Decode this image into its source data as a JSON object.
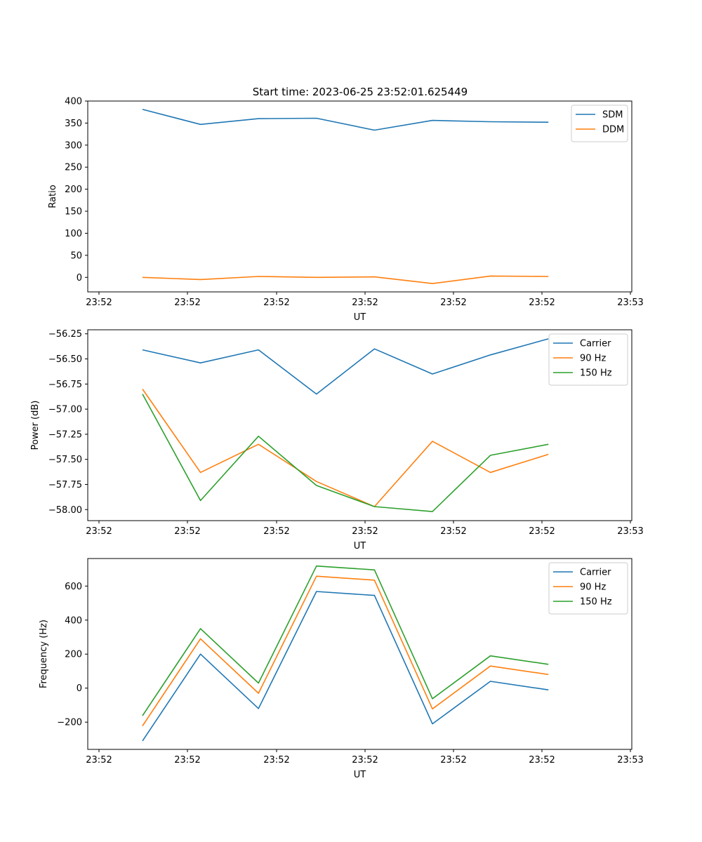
{
  "figure_title": "Start time: 2023-06-25 23:52:01.625449",
  "chart_data": [
    {
      "type": "line",
      "title": "Start time: 2023-06-25 23:52:01.625449",
      "xlabel": "UT",
      "ylabel": "Ratio",
      "x_ticks": [
        "23:52",
        "23:52",
        "23:52",
        "23:52",
        "23:52",
        "23:52",
        "23:53"
      ],
      "y_ticks": [
        "0",
        "50",
        "100",
        "150",
        "200",
        "250",
        "300",
        "350",
        "400"
      ],
      "ylim": [
        -33,
        400
      ],
      "legend_position": "top-right",
      "grid": false,
      "series": [
        {
          "name": "SDM",
          "color": "#1f77b4",
          "values": [
            381,
            347,
            360,
            361,
            334,
            356,
            353,
            352
          ]
        },
        {
          "name": "DDM",
          "color": "#ff7f0e",
          "values": [
            0,
            -5,
            2,
            0,
            1,
            -14,
            3,
            2
          ]
        }
      ]
    },
    {
      "type": "line",
      "xlabel": "UT",
      "ylabel": "Power (dB)",
      "x_ticks": [
        "23:52",
        "23:52",
        "23:52",
        "23:52",
        "23:52",
        "23:52",
        "23:53"
      ],
      "y_ticks": [
        "−58.00",
        "−57.75",
        "−57.50",
        "−57.25",
        "−57.00",
        "−56.75",
        "−56.50",
        "−56.25"
      ],
      "ylim": [
        -58.11,
        -56.21
      ],
      "legend_position": "top-right",
      "grid": false,
      "series": [
        {
          "name": "Carrier",
          "color": "#1f77b4",
          "values": [
            -56.41,
            -56.54,
            -56.41,
            -56.85,
            -56.4,
            -56.65,
            -56.46,
            -56.3
          ]
        },
        {
          "name": "90 Hz",
          "color": "#ff7f0e",
          "values": [
            -56.8,
            -57.63,
            -57.35,
            -57.72,
            -57.97,
            -57.32,
            -57.63,
            -57.45
          ]
        },
        {
          "name": "150 Hz",
          "color": "#2ca02c",
          "values": [
            -56.85,
            -57.91,
            -57.27,
            -57.76,
            -57.97,
            -58.02,
            -57.46,
            -57.35
          ]
        }
      ]
    },
    {
      "type": "line",
      "xlabel": "UT",
      "ylabel": "Frequency (Hz)",
      "x_ticks": [
        "23:52",
        "23:52",
        "23:52",
        "23:52",
        "23:52",
        "23:52",
        "23:53"
      ],
      "y_ticks": [
        "−200",
        "0",
        "200",
        "400",
        "600"
      ],
      "ylim": [
        -360,
        762
      ],
      "legend_position": "top-right",
      "grid": false,
      "series": [
        {
          "name": "Carrier",
          "color": "#1f77b4",
          "values": [
            -310,
            200,
            -120,
            568,
            545,
            -210,
            40,
            -10
          ]
        },
        {
          "name": "90 Hz",
          "color": "#ff7f0e",
          "values": [
            -222,
            290,
            -30,
            658,
            635,
            -122,
            130,
            80
          ]
        },
        {
          "name": "150 Hz",
          "color": "#2ca02c",
          "values": [
            -162,
            350,
            30,
            718,
            695,
            -62,
            190,
            140
          ]
        }
      ]
    }
  ]
}
